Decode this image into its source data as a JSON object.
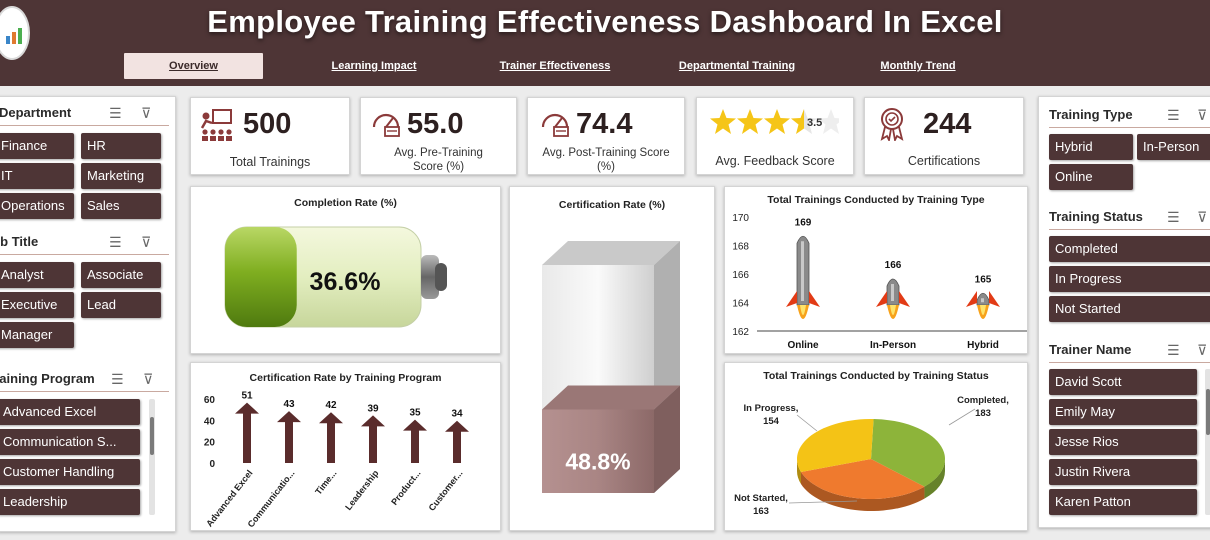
{
  "header": {
    "title": "Employee Training Effectiveness Dashboard In Excel",
    "tabs": [
      "Overview",
      "Learning Impact",
      "Trainer Effectiveness",
      "Departmental Training",
      "Monthly Trend"
    ]
  },
  "kpis": {
    "total_trainings": {
      "value": "500",
      "label": "Total Trainings"
    },
    "pre_score": {
      "value": "55.0",
      "label": "Avg. Pre-Training Score (%)"
    },
    "post_score": {
      "value": "74.4",
      "label": "Avg. Post-Training Score (%)"
    },
    "feedback": {
      "value": "3.5",
      "label": "Avg. Feedback Score",
      "stars": 3.5
    },
    "certifications": {
      "value": "244",
      "label": "Certifications"
    }
  },
  "left_slicers": {
    "department": {
      "title": "Department",
      "items": [
        "Finance",
        "HR",
        "IT",
        "Marketing",
        "Operations",
        "Sales"
      ]
    },
    "job_title": {
      "title": "Job Title",
      "items": [
        "Analyst",
        "Associate",
        "Executive",
        "Lead",
        "Manager"
      ]
    },
    "training_program": {
      "title": "Training Program",
      "items": [
        "Advanced Excel",
        "Communication S...",
        "Customer Handling",
        "Leadership"
      ]
    }
  },
  "right_slicers": {
    "training_type": {
      "title": "Training Type",
      "items": [
        "Hybrid",
        "In-Person",
        "Online"
      ]
    },
    "training_status": {
      "title": "Training Status",
      "items": [
        "Completed",
        "In Progress",
        "Not Started"
      ]
    },
    "trainer_name": {
      "title": "Trainer Name",
      "items": [
        "David Scott",
        "Emily May",
        "Jesse Rios",
        "Justin Rivera",
        "Karen Patton"
      ]
    }
  },
  "chart_data": [
    {
      "type": "gauge",
      "title": "Completion Rate (%)",
      "value": 36.6,
      "value_label": "36.6%"
    },
    {
      "type": "gauge",
      "title": "Certification Rate (%)",
      "value": 48.8,
      "value_label": "48.8%"
    },
    {
      "type": "bar",
      "title": "Total Trainings Conducted by Training Type",
      "categories": [
        "Online",
        "In-Person",
        "Hybrid"
      ],
      "values": [
        169,
        166,
        165
      ],
      "yticks": [
        "170",
        "168",
        "166",
        "164",
        "162"
      ],
      "ylim": [
        162,
        170
      ]
    },
    {
      "type": "bar",
      "title": "Certification Rate by Training Program",
      "categories": [
        "Advanced Excel",
        "Communicatio...",
        "Time...",
        "Leadership",
        "Product...",
        "Customer..."
      ],
      "values": [
        51,
        43,
        42,
        39,
        35,
        34
      ],
      "yticks": [
        "60",
        "40",
        "20",
        "0"
      ],
      "ylim": [
        0,
        60
      ]
    },
    {
      "type": "pie",
      "title": "Total Trainings Conducted by Training Status",
      "labels": [
        "Completed",
        "Not Started",
        "In Progress"
      ],
      "values": [
        183,
        163,
        154
      ],
      "label_text": [
        "Completed,",
        "Not Started,",
        "In Progress,"
      ],
      "value_text": [
        "183",
        "163",
        "154"
      ],
      "colors": [
        "#8db43a",
        "#ef7a2e",
        "#f4c316"
      ]
    }
  ]
}
